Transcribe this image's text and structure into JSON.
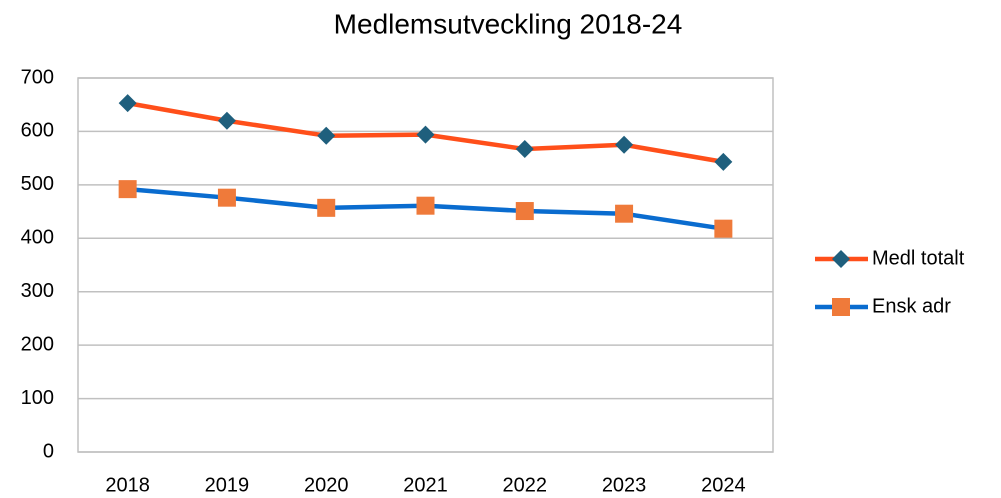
{
  "chart_data": {
    "type": "line",
    "title": "Medlemsutveckling 2018-24",
    "categories": [
      "2018",
      "2019",
      "2020",
      "2021",
      "2022",
      "2023",
      "2024"
    ],
    "series": [
      {
        "name": "Medl totalt",
        "color": "#ff4f1a",
        "marker": "diamond",
        "marker_color": "#1f5f7d",
        "values": [
          653,
          620,
          592,
          594,
          567,
          575,
          543
        ]
      },
      {
        "name": "Ensk adr",
        "color": "#0a6ccf",
        "marker": "square",
        "marker_color": "#ef7a3a",
        "values": [
          492,
          476,
          457,
          461,
          451,
          446,
          418
        ]
      }
    ],
    "ylim": [
      0,
      700
    ],
    "yticks": [
      0,
      100,
      200,
      300,
      400,
      500,
      600,
      700
    ],
    "grid": true,
    "legend": "right"
  }
}
